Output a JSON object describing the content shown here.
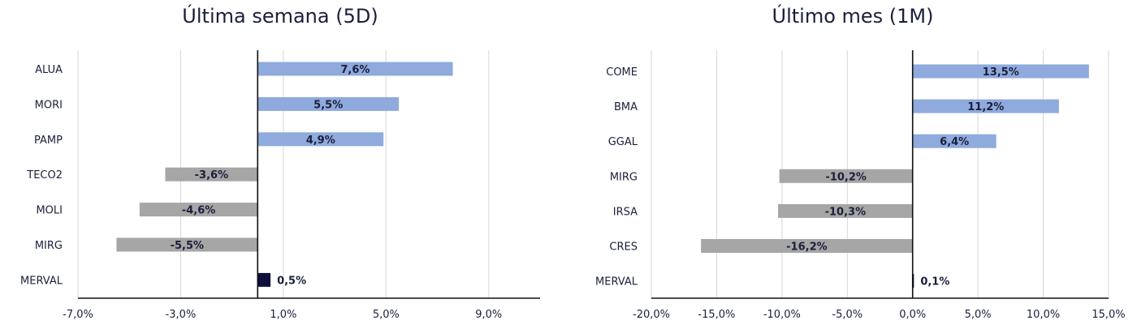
{
  "colors": {
    "positive": "#8faadc",
    "negative": "#a6a6a6",
    "index": "#0f0f3d",
    "text": "#1b1f3b"
  },
  "chart_data": [
    {
      "type": "bar",
      "orientation": "horizontal",
      "title": "Última semana (5D)",
      "categories": [
        "ALUA",
        "MORI",
        "PAMP",
        "TECO2",
        "MOLI",
        "MIRG",
        "MERVAL"
      ],
      "values": [
        7.6,
        5.5,
        4.9,
        -3.6,
        -4.6,
        -5.5,
        0.5
      ],
      "value_labels": [
        "7,6%",
        "5,5%",
        "4,9%",
        "-3,6%",
        "-4,6%",
        "-5,5%",
        "0,5%"
      ],
      "highlight_category": "MERVAL",
      "xlim": [
        -7.0,
        11.0
      ],
      "xticks": [
        -7.0,
        -3.0,
        1.0,
        5.0,
        9.0
      ],
      "xtick_labels": [
        "-7,0%",
        "-3,0%",
        "1,0%",
        "5,0%",
        "9,0%"
      ],
      "grid": true
    },
    {
      "type": "bar",
      "orientation": "horizontal",
      "title": "Último mes (1M)",
      "categories": [
        "COME",
        "BMA",
        "GGAL",
        "MIRG",
        "IRSA",
        "CRES",
        "MERVAL"
      ],
      "values": [
        13.5,
        11.2,
        6.4,
        -10.2,
        -10.3,
        -16.2,
        0.1
      ],
      "value_labels": [
        "13,5%",
        "11,2%",
        "6,4%",
        "-10,2%",
        "-10,3%",
        "-16,2%",
        "0,1%"
      ],
      "highlight_category": "MERVAL",
      "xlim": [
        -20.0,
        15.0
      ],
      "xticks": [
        -20.0,
        -15.0,
        -10.0,
        -5.0,
        0.0,
        5.0,
        10.0,
        15.0
      ],
      "xtick_labels": [
        "-20,0%",
        "-15,0%",
        "-10,0%",
        "-5,0%",
        "0,0%",
        "5,0%",
        "10,0%",
        "15,0%"
      ],
      "grid": true
    }
  ]
}
